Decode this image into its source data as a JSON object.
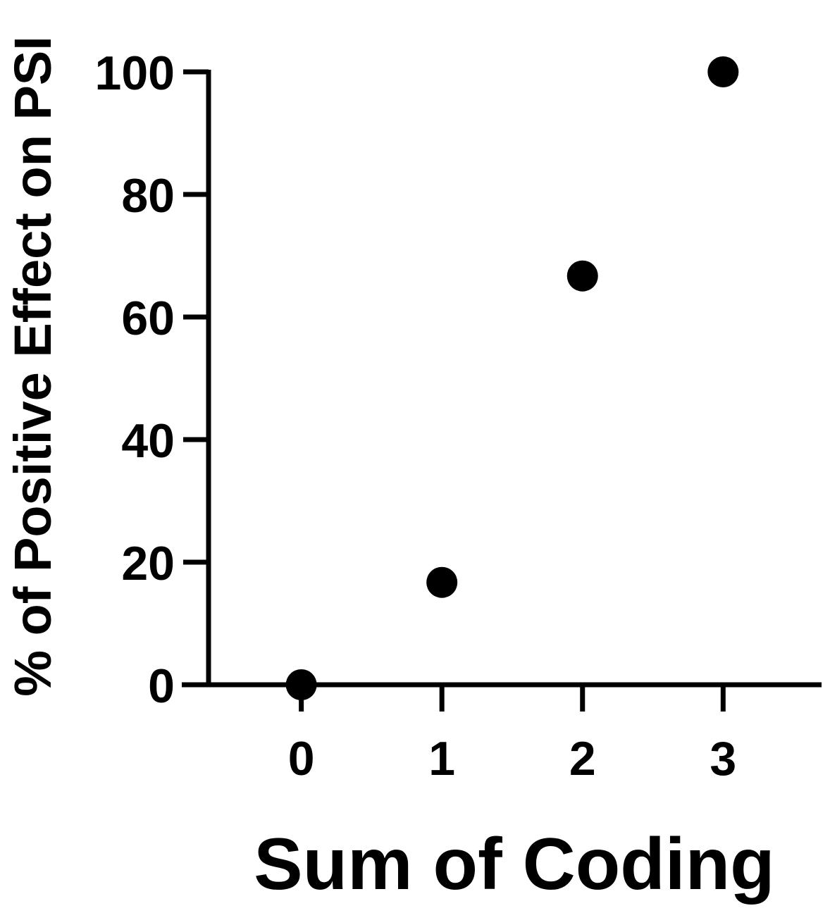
{
  "chart_data": {
    "type": "scatter",
    "title": "",
    "xlabel": "Sum of Coding",
    "ylabel": "% of Positive Effect on PSI",
    "x_ticks": [
      "0",
      "1",
      "2",
      "3"
    ],
    "y_ticks": [
      "0",
      "20",
      "40",
      "60",
      "80",
      "100"
    ],
    "xlim": [
      -0.85,
      3.7
    ],
    "ylim": [
      0,
      100
    ],
    "grid": false,
    "legend": "none",
    "marker_color": "#000000",
    "axis_color": "#000000",
    "series": [
      {
        "x": [
          0,
          1,
          2,
          3
        ],
        "y": [
          0,
          16.7,
          66.7,
          100
        ]
      }
    ]
  }
}
